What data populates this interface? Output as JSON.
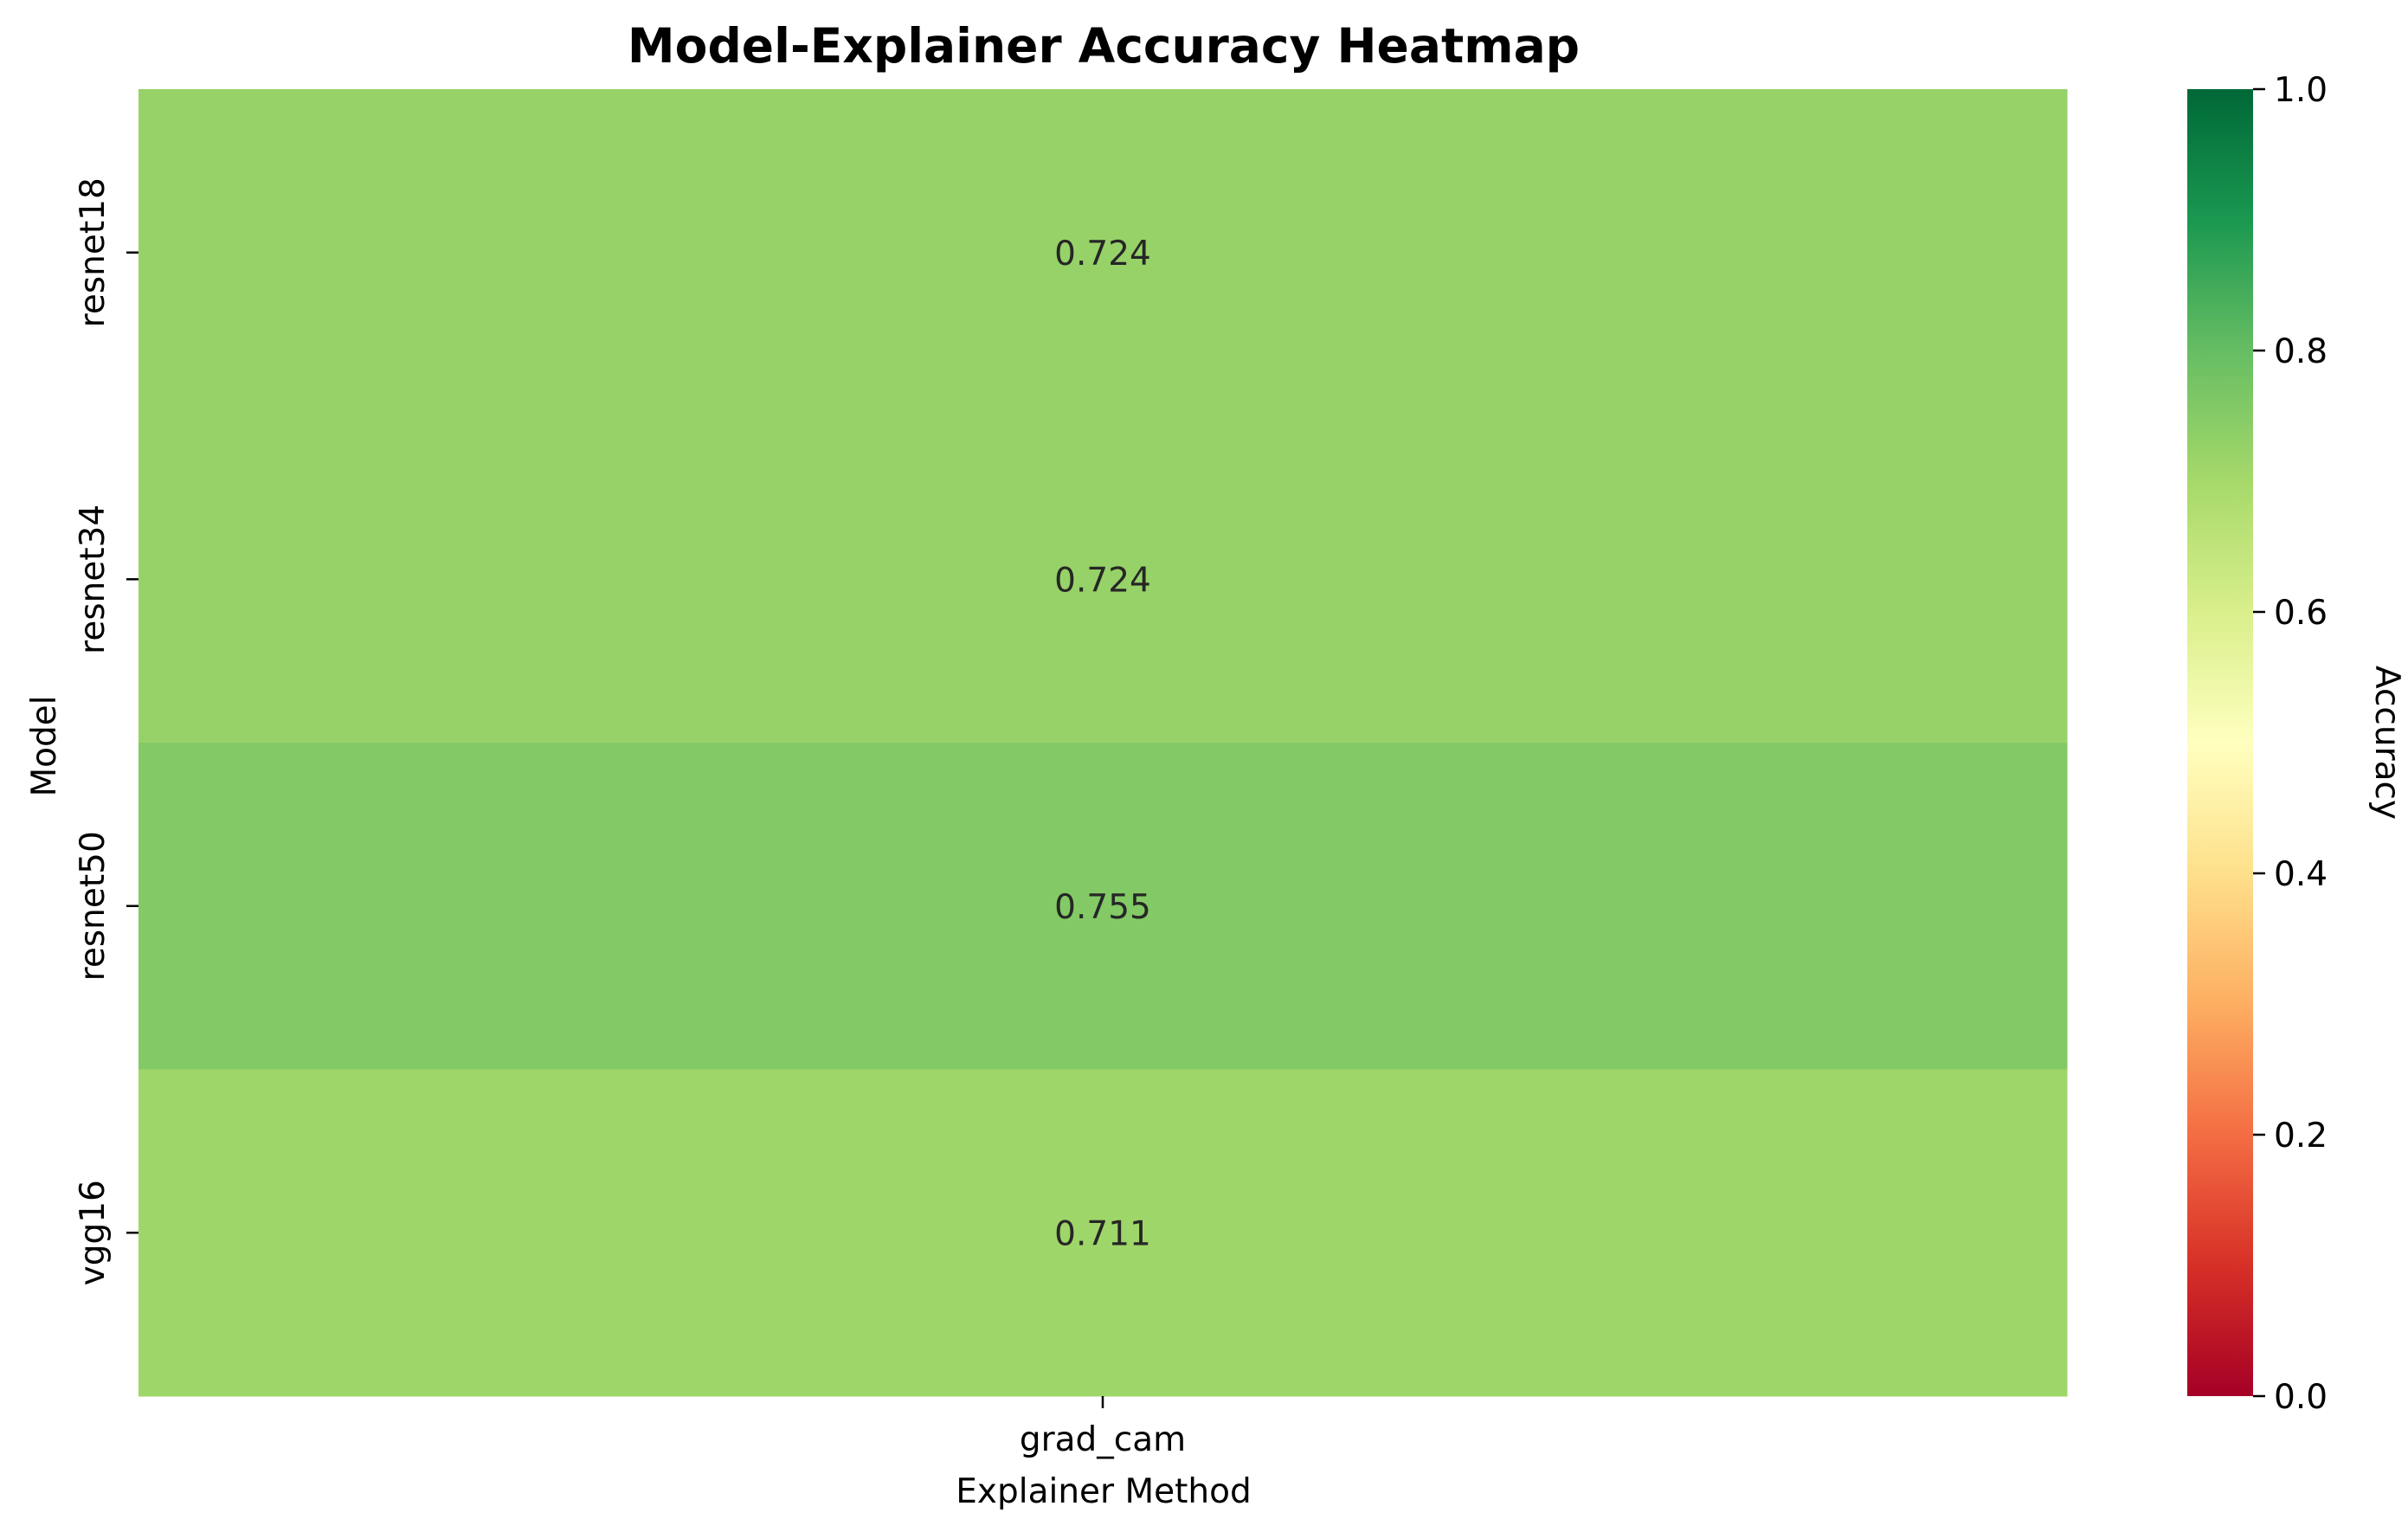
{
  "chart_data": {
    "type": "heatmap",
    "title": "Model-Explainer Accuracy Heatmap",
    "xlabel": "Explainer Method",
    "ylabel": "Model",
    "x_categories": [
      "grad_cam"
    ],
    "y_categories": [
      "resnet18",
      "resnet34",
      "resnet50",
      "vgg16"
    ],
    "values": [
      [
        0.724
      ],
      [
        0.724
      ],
      [
        0.755
      ],
      [
        0.711
      ]
    ],
    "annotations": [
      "0.724",
      "0.724",
      "0.755",
      "0.711"
    ],
    "colorbar": {
      "label": "Accuracy",
      "range": [
        0.0,
        1.0
      ],
      "ticks": [
        "0.0",
        "0.2",
        "0.4",
        "0.6",
        "0.8",
        "1.0"
      ],
      "colormap": "RdYlGn",
      "colors": [
        "#a50026",
        "#d73027",
        "#f46d43",
        "#fdae61",
        "#fee08b",
        "#ffffbf",
        "#d9ef8b",
        "#a6d96a",
        "#66bd63",
        "#1a9850",
        "#006837"
      ]
    }
  }
}
